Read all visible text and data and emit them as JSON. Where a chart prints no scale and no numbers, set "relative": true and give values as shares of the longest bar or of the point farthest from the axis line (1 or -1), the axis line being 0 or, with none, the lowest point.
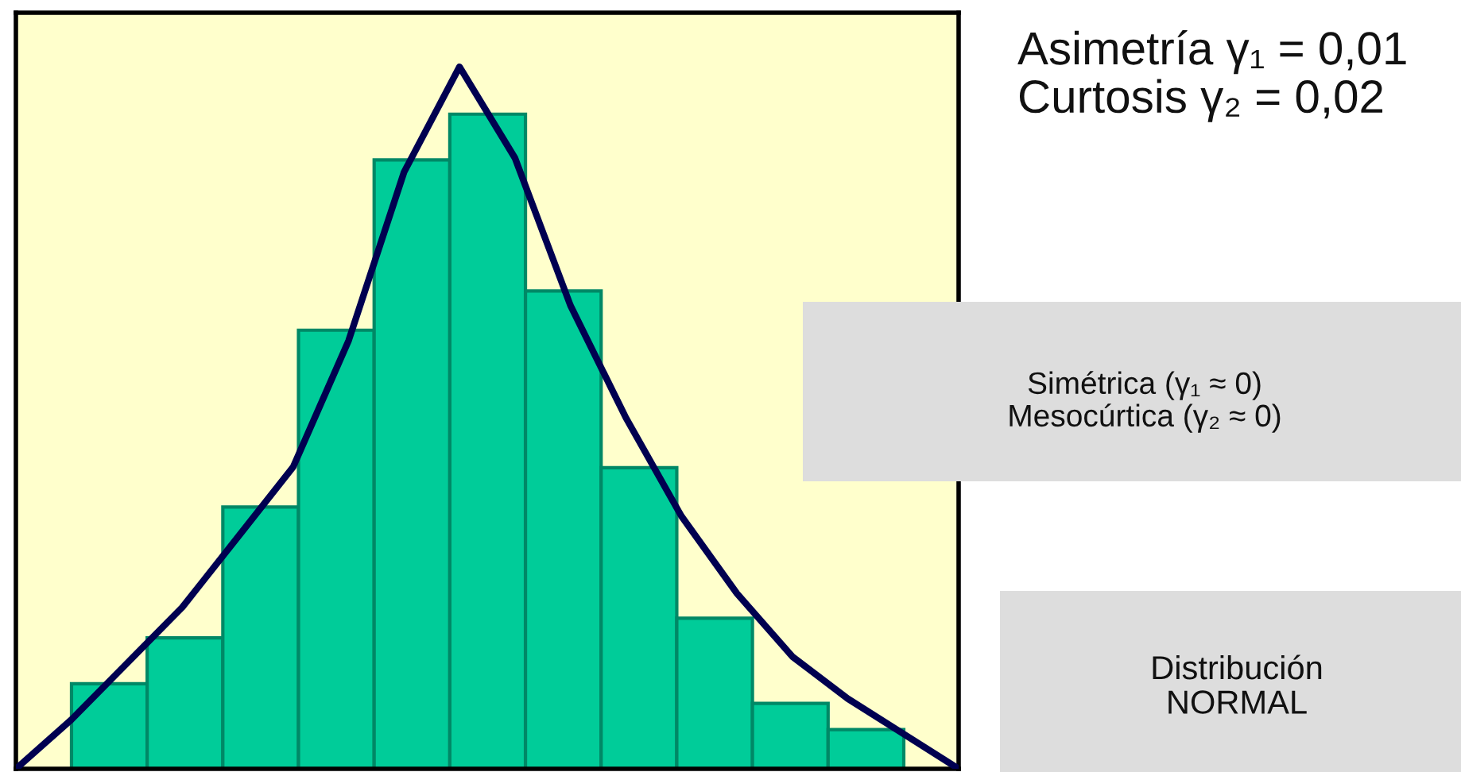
{
  "chart_data": [
    {
      "type": "bar",
      "relative": true,
      "grid": false,
      "legend": false,
      "categories": [
        null,
        null,
        null,
        null,
        null,
        null,
        null,
        null,
        null,
        null,
        null
      ],
      "series": [
        {
          "color": "#00cc99",
          "values": [
            0.13,
            0.2,
            0.4,
            0.67,
            0.93,
            1,
            0.73,
            0.46,
            0.23,
            0.1,
            0.06
          ]
        }
      ],
      "annotations": [
        "Asimetría γ₁ = 0,01\nCurtosis γ₂ = 0,02",
        "Simétrica (γ₁ ≈ 0)\nMesocúrtica (γ₂ ≈ 0)",
        "Distribución\nNORMAL"
      ]
    },
    {
      "type": "line",
      "relative": true,
      "grid": false,
      "legend": false,
      "categories": [
        null,
        null,
        null,
        null,
        null,
        null,
        null,
        null,
        null,
        null,
        null,
        null,
        null,
        null,
        null,
        null,
        null,
        null
      ],
      "series": [
        {
          "color": "#000050",
          "values": [
            0,
            0.07,
            0.15,
            0.23,
            0.33,
            0.43,
            0.61,
            0.85,
            1,
            0.87,
            0.66,
            0.5,
            0.36,
            0.25,
            0.16,
            0.1,
            0.05,
            0
          ]
        }
      ]
    }
  ]
}
